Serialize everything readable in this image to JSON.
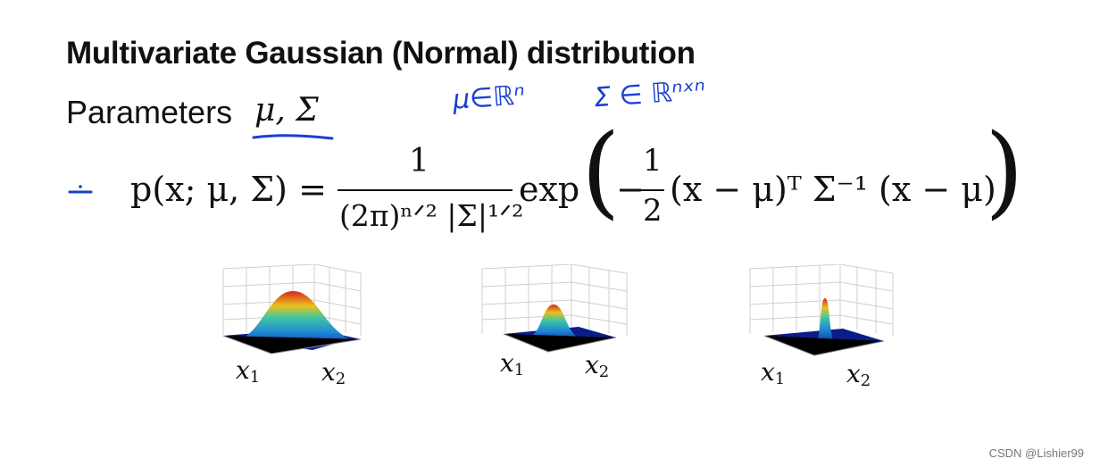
{
  "slide": {
    "title": "Multivariate Gaussian (Normal) distribution",
    "params_label": "Parameters",
    "params_symbols": "μ, Σ"
  },
  "handwriting": {
    "mu_note": "μ∈ℝⁿ",
    "sigma_note": "Σ ∈ ℝⁿˣⁿ",
    "color": "#1a3fd1"
  },
  "formula": {
    "lhs": "p(x; μ, Σ) =",
    "numerator": "1",
    "denominator": "(2π)ⁿᐟ² |Σ|¹ᐟ²",
    "exp": "exp",
    "minus": "−",
    "half_num": "1",
    "half_den": "2",
    "rest": "(x − μ)ᵀ Σ⁻¹ (x − μ)"
  },
  "plots": [
    {
      "x1_label": "x",
      "x1_sub": "1",
      "x2_label": "x",
      "x2_sub": "2",
      "spread": "wide"
    },
    {
      "x1_label": "x",
      "x1_sub": "1",
      "x2_label": "x",
      "x2_sub": "2",
      "spread": "medium"
    },
    {
      "x1_label": "x",
      "x1_sub": "1",
      "x2_label": "x",
      "x2_sub": "2",
      "spread": "narrow"
    }
  ],
  "watermark": "CSDN @Lishier99"
}
